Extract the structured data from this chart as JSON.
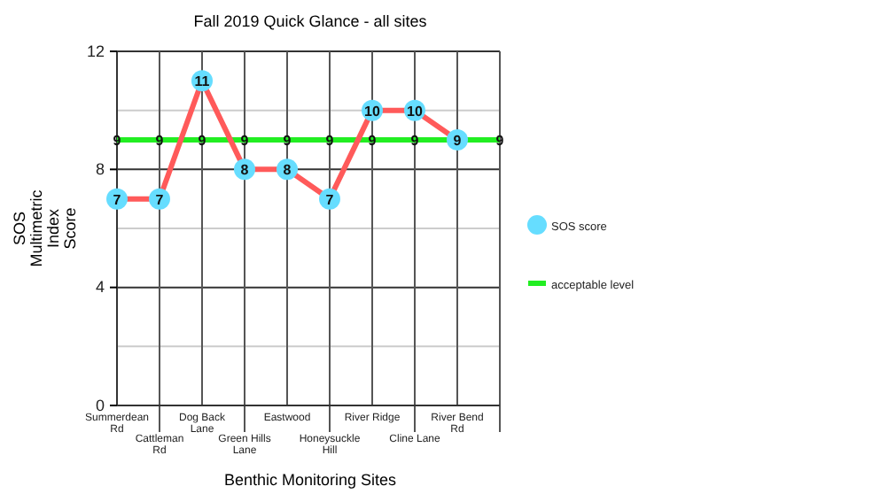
{
  "chart_data": {
    "type": "line",
    "title": "Fall 2019 Quick Glance - all sites",
    "xlabel": "Benthic Monitoring Sites",
    "ylabel": "SOS Multimetric Index Score",
    "categories": [
      "Summerdean Rd",
      "Cattleman Rd",
      "Dog Back Lane",
      "Green Hills Lane",
      "Eastwood",
      "Honeysuckle Hill",
      "River Ridge",
      "Cline Lane",
      "River Bend Rd",
      null
    ],
    "series": [
      {
        "color": "#ff5a5a",
        "marker": "none",
        "values": [
          7,
          7,
          11,
          8,
          8,
          7,
          10,
          10,
          9,
          null
        ]
      },
      {
        "type": "scatter",
        "name": "SOS score",
        "color": "#66ddff",
        "marker": "circle",
        "values": [
          7,
          7,
          11,
          8,
          8,
          7,
          10,
          10,
          9,
          null
        ],
        "value_labels": [
          "7",
          "7",
          "11",
          "8",
          "8",
          "7",
          "10",
          "10",
          "9",
          null
        ]
      },
      {
        "type": "line",
        "name": "acceptable level",
        "color": "#22ee22",
        "marker": "none",
        "values": [
          9,
          9,
          9,
          9,
          9,
          9,
          9,
          9,
          9,
          9
        ],
        "value_labels": [
          "9",
          "9",
          "9",
          "9",
          "9",
          "9",
          "9",
          "9",
          null,
          "9"
        ]
      }
    ],
    "ylim": [
      0,
      12
    ],
    "yticks": [
      0,
      {
        "value": 2,
        "label": null
      },
      4,
      {
        "value": 6,
        "label": null
      },
      8,
      {
        "value": 10,
        "label": null
      },
      12
    ],
    "grid": true,
    "legend": "right",
    "line_style": "solid"
  }
}
